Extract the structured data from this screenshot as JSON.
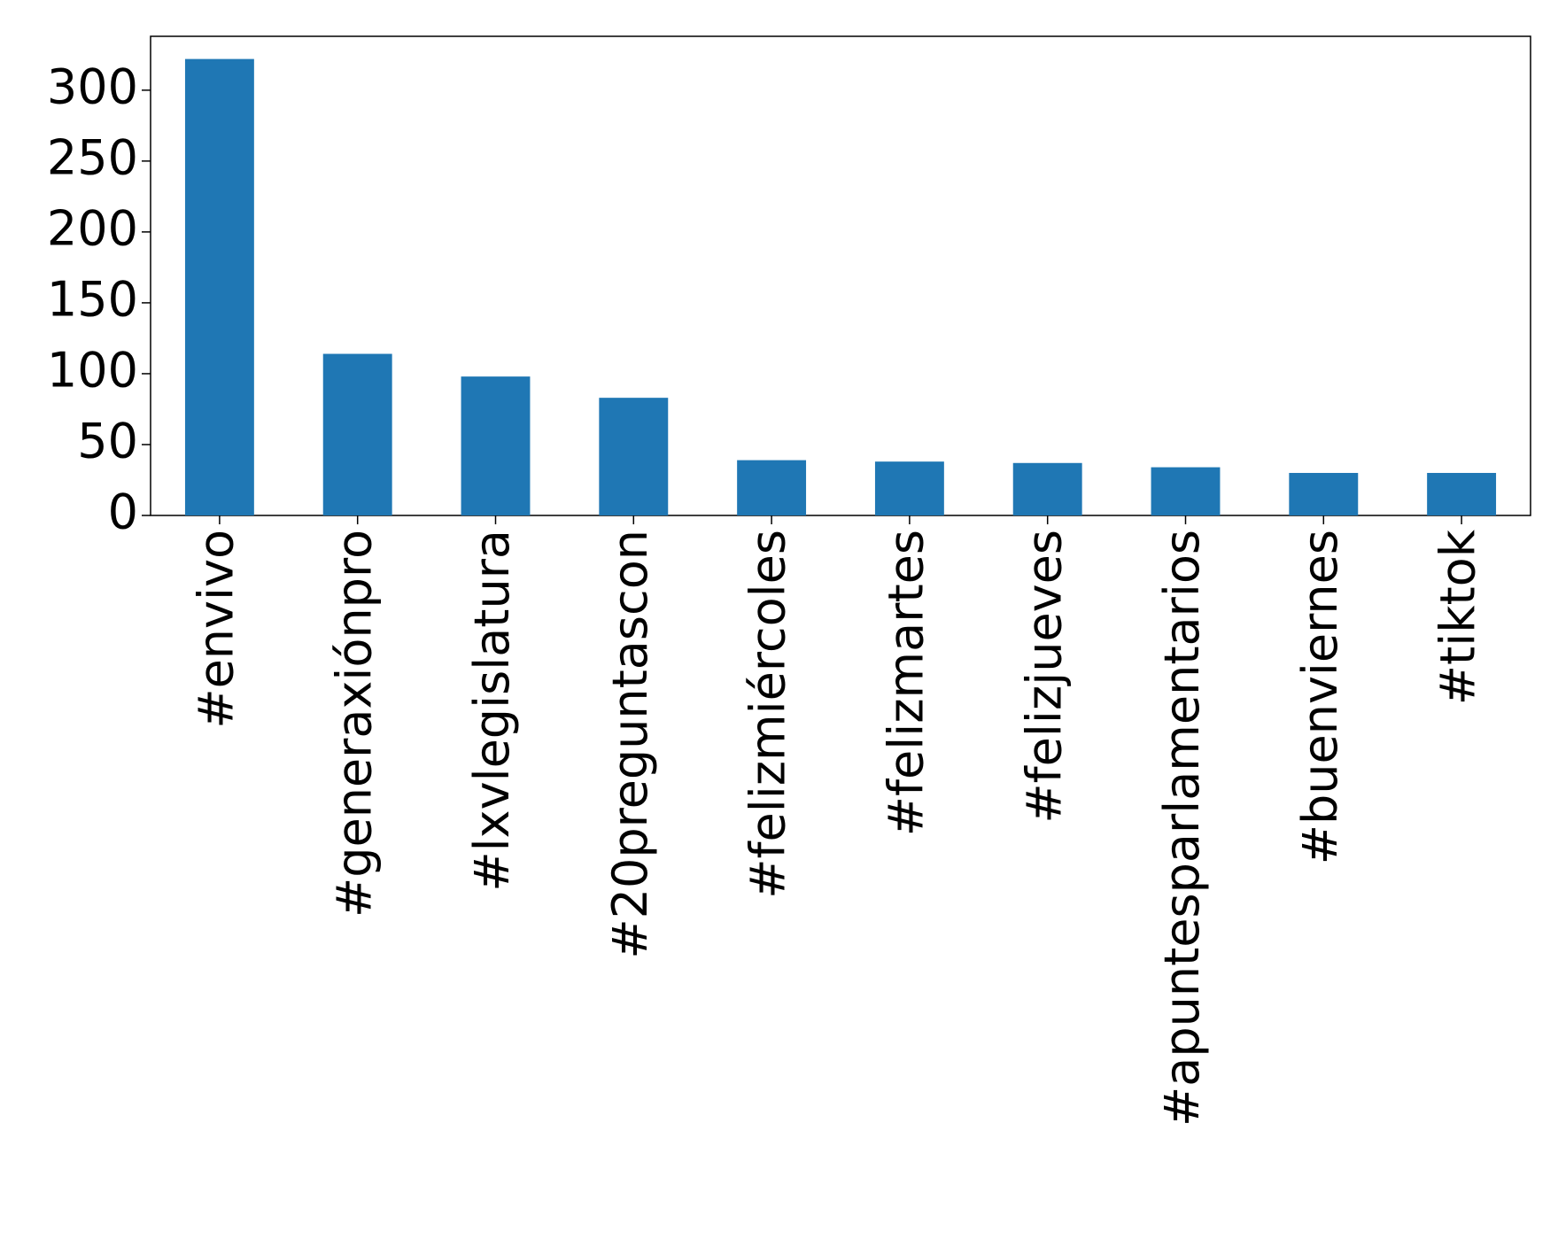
{
  "chart_data": {
    "type": "bar",
    "categories": [
      "#envivo",
      "#generaxiónpro",
      "#lxvlegislatura",
      "#20preguntascon",
      "#felizmiércoles",
      "#felizmartes",
      "#felizjueves",
      "#apuntesparlamentarios",
      "#buenviernes",
      "#tiktok"
    ],
    "values": [
      322,
      114,
      98,
      83,
      39,
      38,
      37,
      34,
      30,
      30
    ],
    "color": "#1f77b4",
    "ylim": [
      0,
      338
    ],
    "yticks": [
      0,
      50,
      100,
      150,
      200,
      250,
      300
    ],
    "grid": false
  }
}
